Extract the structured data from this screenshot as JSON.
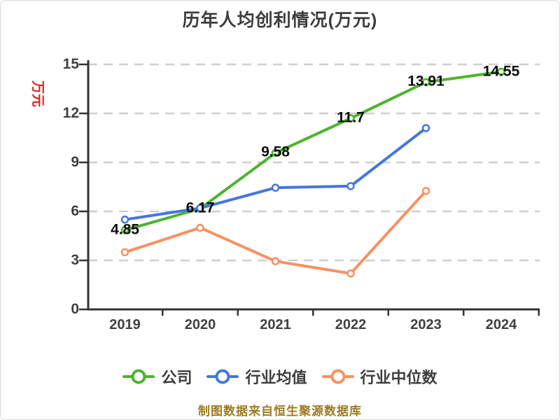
{
  "title": "历年人均创利情况(万元)",
  "footer": {
    "source_note": "制图数据来自恒生聚源数据库"
  },
  "colors": {
    "company_green": "#4db32e",
    "industry_avg_blue": "#4477dd",
    "industry_median_orange": "#f8915f",
    "axis_line": "#333333",
    "gridline": "#cfcfcf",
    "tick_text": "#404040",
    "title_text": "#3d3d3d",
    "axis_name_red": "#e02222",
    "footer_text": "#9c7b1f",
    "data_label_text": "#0d0d0d"
  },
  "chart_data": {
    "type": "line",
    "title": "历年人均创利情况(万元)",
    "y_axis_name": "万元",
    "categories": [
      "2019",
      "2020",
      "2021",
      "2022",
      "2023",
      "2024"
    ],
    "series": [
      {
        "name": "公司",
        "color": "#4db32e",
        "labels_shown": true,
        "values": [
          4.85,
          6.17,
          9.58,
          11.7,
          13.91,
          14.55
        ]
      },
      {
        "name": "行业均值",
        "color": "#4477dd",
        "labels_shown": false,
        "values": [
          5.5,
          6.2,
          7.45,
          7.55,
          11.1,
          null
        ]
      },
      {
        "name": "行业中位数",
        "color": "#f8915f",
        "labels_shown": false,
        "values": [
          3.5,
          5.0,
          2.95,
          2.2,
          7.25,
          null
        ]
      }
    ],
    "y_ticks": [
      0,
      3,
      6,
      9,
      12,
      15
    ],
    "ylim": [
      0,
      15
    ],
    "xlabel": "",
    "ylabel": "万元",
    "grid": "horizontal-dashed",
    "legend_position": "bottom",
    "marker": "white-circle-colored-ring"
  }
}
